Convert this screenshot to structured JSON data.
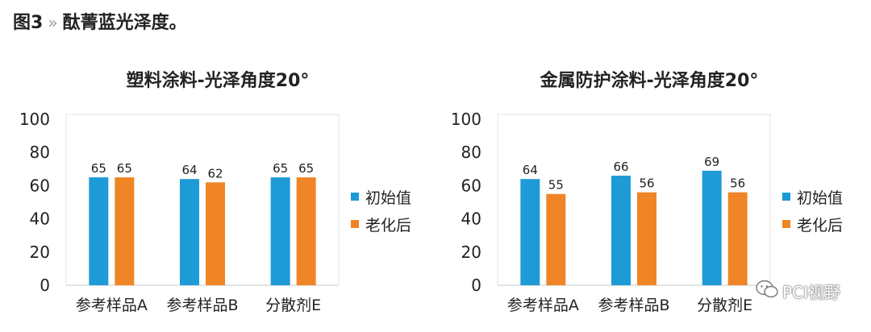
{
  "figure": {
    "number": "图3",
    "separator": "»",
    "caption": "酞菁蓝光泽度。"
  },
  "watermark": {
    "text": "PCI视野",
    "icon": "wechat-icon"
  },
  "colors": {
    "series_initial": "#1E9BD7",
    "series_aged": "#F08527"
  },
  "chart_data": [
    {
      "type": "bar",
      "title": "塑料涂料-光泽角度20°",
      "categories": [
        "参考样品A",
        "参考样品B",
        "分散剂E"
      ],
      "series": [
        {
          "name": "初始值",
          "values": [
            65,
            64,
            65
          ]
        },
        {
          "name": "老化后",
          "values": [
            65,
            62,
            65
          ]
        }
      ],
      "ylim": [
        0,
        100
      ],
      "yticks": [
        "0",
        "20",
        "40",
        "60",
        "80",
        "100"
      ],
      "xlabel": "",
      "ylabel": "",
      "grid": false,
      "legend_position": "right"
    },
    {
      "type": "bar",
      "title": "金属防护涂料-光泽角度20°",
      "categories": [
        "参考样品A",
        "参考样品B",
        "分散剂E"
      ],
      "series": [
        {
          "name": "初始值",
          "values": [
            64,
            66,
            69
          ]
        },
        {
          "name": "老化后",
          "values": [
            55,
            56,
            56
          ]
        }
      ],
      "ylim": [
        0,
        100
      ],
      "yticks": [
        "0",
        "20",
        "40",
        "60",
        "80",
        "100"
      ],
      "xlabel": "",
      "ylabel": "",
      "grid": false,
      "legend_position": "right"
    }
  ]
}
